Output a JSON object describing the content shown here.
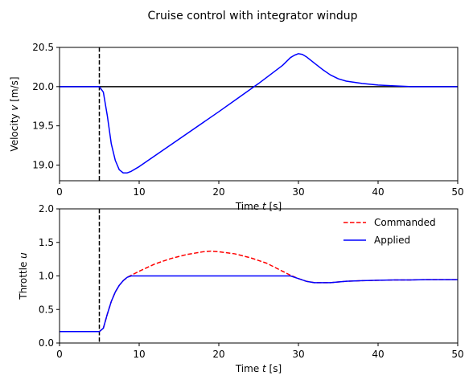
{
  "figure": {
    "title": "Cruise control with integrator windup"
  },
  "chart_data": [
    {
      "type": "line",
      "xlabel": "Time $t$ [s]",
      "ylabel": "Velocity v [m/s]",
      "xlim": [
        0,
        50
      ],
      "ylim": [
        18.8,
        20.5
      ],
      "x_ticks": [
        "0",
        "10",
        "20",
        "30",
        "40",
        "50"
      ],
      "y_ticks": [
        "19.0",
        "19.5",
        "20.0",
        "20.5"
      ],
      "grid": false,
      "reference_lines": [
        {
          "orientation": "horizontal",
          "value": 20.0,
          "color": "#000000",
          "style": "solid"
        },
        {
          "orientation": "vertical",
          "value": 5,
          "color": "#000000",
          "style": "dashed"
        }
      ],
      "series": [
        {
          "color": "#0000ff",
          "style": "solid",
          "x": [
            0,
            5,
            5.5,
            6,
            6.5,
            7,
            7.5,
            8,
            8.5,
            9,
            10,
            15,
            20,
            25,
            28,
            29,
            29.5,
            30,
            30.5,
            31,
            32,
            33,
            34,
            35,
            36,
            38,
            40,
            42,
            44,
            46,
            50
          ],
          "y": [
            20.0,
            20.0,
            19.93,
            19.63,
            19.27,
            19.06,
            18.94,
            18.9,
            18.9,
            18.92,
            18.98,
            19.33,
            19.68,
            20.04,
            20.27,
            20.37,
            20.4,
            20.42,
            20.41,
            20.38,
            20.3,
            20.22,
            20.15,
            20.1,
            20.07,
            20.04,
            20.02,
            20.01,
            20.0,
            20.0,
            20.0
          ]
        }
      ]
    },
    {
      "type": "line",
      "xlabel": "Time t [s]",
      "ylabel": "Throttle u",
      "xlim": [
        0,
        50
      ],
      "ylim": [
        0.0,
        2.0
      ],
      "x_ticks": [
        "0",
        "10",
        "20",
        "30",
        "40",
        "50"
      ],
      "y_ticks": [
        "0.0",
        "0.5",
        "1.0",
        "1.5",
        "2.0"
      ],
      "grid": false,
      "legend_position": "top-right",
      "reference_lines": [
        {
          "orientation": "vertical",
          "value": 5,
          "color": "#000000",
          "style": "dashed"
        }
      ],
      "series": [
        {
          "name": "Commanded",
          "color": "#ff0000",
          "style": "dashed",
          "x": [
            0,
            5,
            5.5,
            6,
            6.5,
            7,
            7.5,
            8,
            8.5,
            9,
            10,
            12,
            14,
            16,
            18,
            19,
            20,
            22,
            24,
            26,
            27,
            28,
            29,
            30,
            31,
            32,
            33,
            34,
            35,
            36,
            38,
            40,
            42,
            44,
            46,
            48,
            50
          ],
          "y": [
            0.17,
            0.17,
            0.22,
            0.43,
            0.62,
            0.76,
            0.86,
            0.93,
            0.98,
            1.01,
            1.07,
            1.18,
            1.26,
            1.32,
            1.36,
            1.37,
            1.36,
            1.33,
            1.27,
            1.19,
            1.13,
            1.07,
            1.01,
            0.96,
            0.92,
            0.9,
            0.9,
            0.9,
            0.91,
            0.92,
            0.93,
            0.935,
            0.94,
            0.94,
            0.945,
            0.945,
            0.945
          ]
        },
        {
          "name": "Applied",
          "color": "#0000ff",
          "style": "solid",
          "x": [
            0,
            5,
            5.5,
            6,
            6.5,
            7,
            7.5,
            8,
            8.5,
            9,
            10,
            12,
            14,
            16,
            18,
            20,
            22,
            24,
            26,
            28,
            29,
            30,
            31,
            32,
            33,
            34,
            35,
            36,
            38,
            40,
            42,
            44,
            46,
            48,
            50
          ],
          "y": [
            0.17,
            0.17,
            0.22,
            0.43,
            0.62,
            0.76,
            0.86,
            0.93,
            0.98,
            1.0,
            1.0,
            1.0,
            1.0,
            1.0,
            1.0,
            1.0,
            1.0,
            1.0,
            1.0,
            1.0,
            1.0,
            0.96,
            0.92,
            0.9,
            0.9,
            0.9,
            0.91,
            0.92,
            0.93,
            0.935,
            0.94,
            0.94,
            0.945,
            0.945,
            0.945
          ]
        }
      ]
    }
  ]
}
